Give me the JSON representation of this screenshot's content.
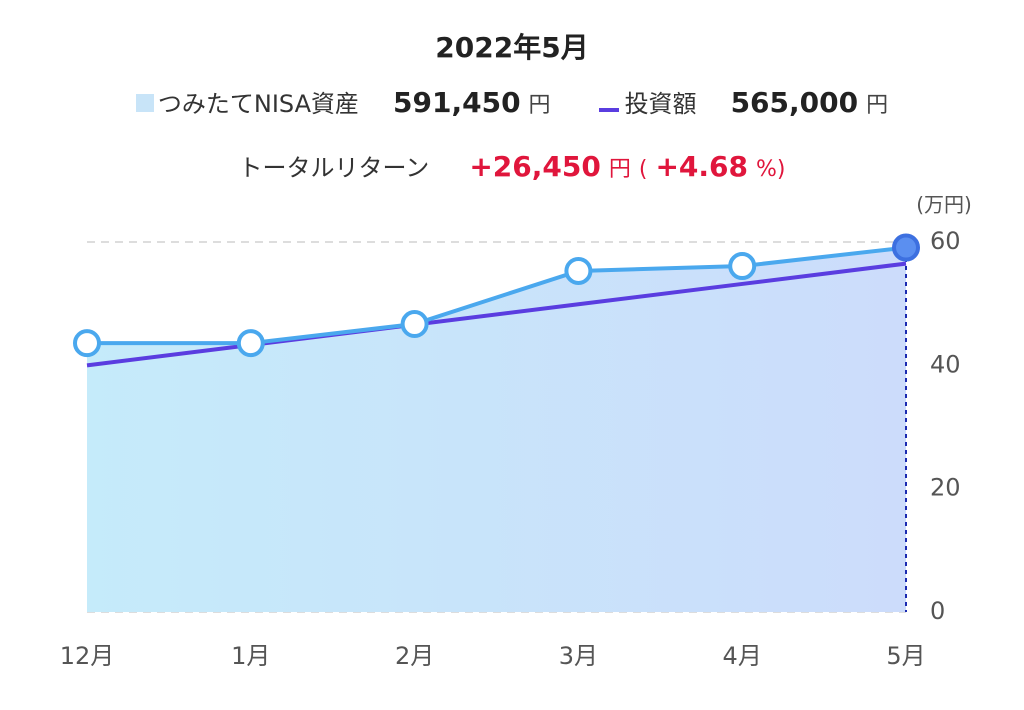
{
  "header": {
    "title": "2022年5月",
    "asset_value": "591,450",
    "asset_unit": "円",
    "invest_value": "565,000",
    "invest_unit": "円",
    "return_label": "トータルリターン",
    "return_value": "+26,450",
    "return_unit": "円",
    "paren_open": "(",
    "return_pct": "+4.68",
    "pct_unit": "%",
    "paren_close": ")"
  },
  "chart_data": {
    "type": "line",
    "y_label": "(万円)",
    "categories": [
      "12月",
      "1月",
      "2月",
      "3月",
      "4月",
      "5月"
    ],
    "series": [
      {
        "name": "つみたてNISA資産",
        "color": "#4aa8ee",
        "values": [
          43.6,
          43.6,
          46.7,
          55.3,
          56.1,
          59.1
        ]
      },
      {
        "name": "投資額",
        "color": "#5a3de0",
        "values": [
          40,
          43.3,
          46.6,
          49.9,
          53.2,
          56.5
        ]
      }
    ],
    "ylim": [
      0,
      60
    ],
    "yticks": [
      0,
      20,
      40,
      60
    ],
    "grid": true
  }
}
